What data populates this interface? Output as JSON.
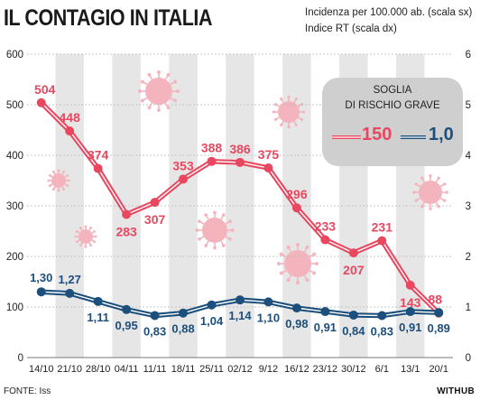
{
  "title": "IL CONTAGIO IN ITALIA",
  "legend": {
    "incidenza": "Incidenza per 100.000 ab. (scala sx)",
    "rt": "Indice RT (scala dx)"
  },
  "threshold_box": {
    "line1": "SOGLIA",
    "line2": "DI RISCHIO GRAVE",
    "incidenza_value": "150",
    "rt_value": "1,0"
  },
  "source": "FONTE: Iss",
  "brand": "WITHUB",
  "colors": {
    "incidenza": "#e8475f",
    "rt": "#1c4f7c",
    "band": "#e6e6e6",
    "box": "#cfcfcf",
    "virus": "#f4b4bd"
  },
  "chart_data": {
    "type": "line",
    "categories": [
      "14/10",
      "21/10",
      "28/10",
      "04/11",
      "11/11",
      "18/11",
      "25/11",
      "02/12",
      "9/12",
      "16/12",
      "23/12",
      "30/12",
      "6/1",
      "13/1",
      "20/1"
    ],
    "series": [
      {
        "name": "Incidenza per 100.000 ab. (scala sx)",
        "axis": "left",
        "values": [
          504,
          448,
          374,
          283,
          307,
          353,
          388,
          386,
          375,
          296,
          233,
          207,
          231,
          143,
          88
        ],
        "labels": [
          "504",
          "448",
          "374",
          "283",
          "307",
          "353",
          "388",
          "386",
          "375",
          "296",
          "233",
          "207",
          "231",
          "143",
          "88"
        ]
      },
      {
        "name": "Indice RT (scala dx)",
        "axis": "right",
        "values": [
          1.3,
          1.27,
          1.11,
          0.95,
          0.83,
          0.88,
          1.04,
          1.14,
          1.1,
          0.98,
          0.91,
          0.84,
          0.83,
          0.91,
          0.89
        ],
        "labels": [
          "1,30",
          "1,27",
          "1,11",
          "0,95",
          "0,83",
          "0,88",
          "1,04",
          "1,14",
          "1,10",
          "0,98",
          "0,91",
          "0,84",
          "0,83",
          "0,91",
          "0,89"
        ]
      }
    ],
    "y_left": {
      "min": 0,
      "max": 600,
      "ticks": [
        "0",
        "100",
        "200",
        "300",
        "400",
        "500",
        "600"
      ]
    },
    "y_right": {
      "min": 0,
      "max": 6,
      "ticks": [
        "0",
        "1",
        "2",
        "3",
        "4",
        "5",
        "6"
      ]
    },
    "grid": true,
    "legend_position": "top-right"
  }
}
